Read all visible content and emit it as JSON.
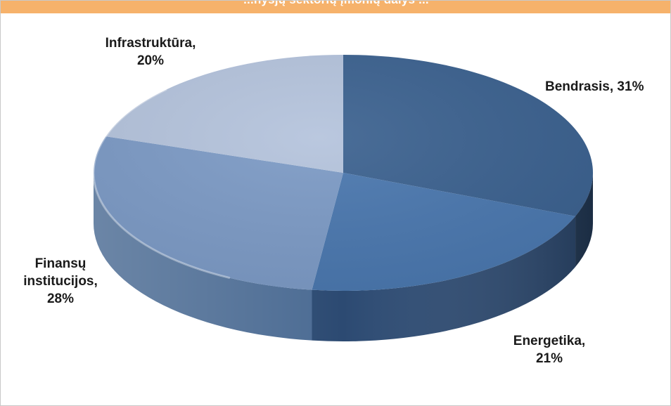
{
  "chart_data": {
    "type": "pie",
    "title": "",
    "header_text": "...nysjų sektorių įmonių dalys ...",
    "categories": [
      "Bendrasis",
      "Energetika",
      "Finansų institucijos",
      "Infrastruktūra"
    ],
    "values": [
      31,
      21,
      28,
      20
    ],
    "unit": "%",
    "labels": {
      "bendrasis": "Bendrasis, 31%",
      "energetika_1": "Energetika,",
      "energetika_2": "21%",
      "finansu_1": "Finansų",
      "finansu_2": "institucijos,",
      "finansu_3": "28%",
      "infra_1": "Infrastruktūra,",
      "infra_2": "20%"
    },
    "colors": [
      "#3b618f",
      "#4a77ae",
      "#7c9ac5",
      "#b4c3dc"
    ],
    "side_colors": [
      "#243c5a",
      "#2c4a72",
      "#4b6b93",
      "#8ea2c0"
    ],
    "legend": "none",
    "style": "3d-pie"
  }
}
